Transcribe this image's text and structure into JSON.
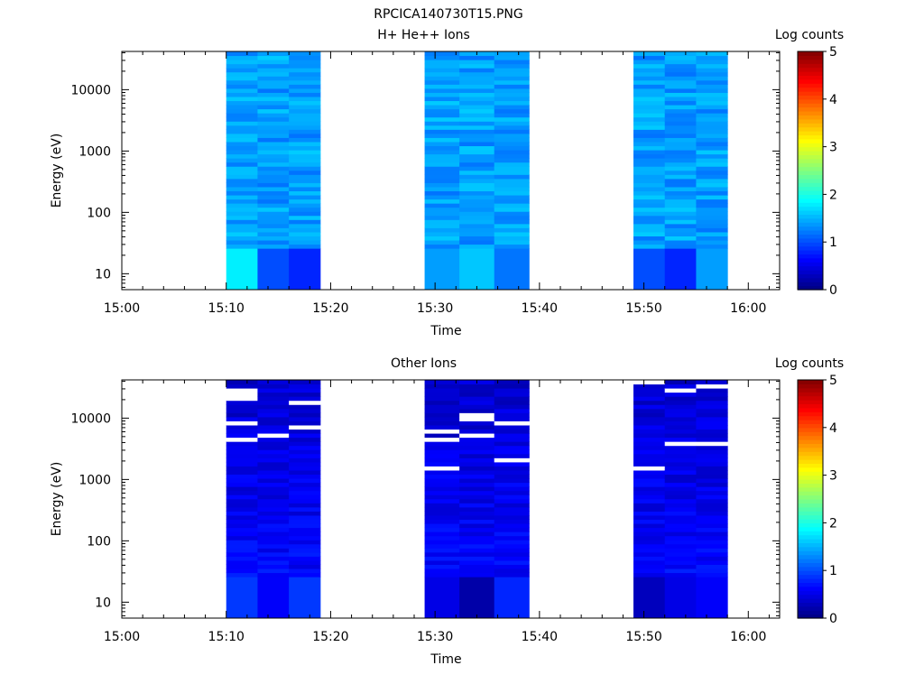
{
  "figure": {
    "title": "RPCICA140730T15.PNG"
  },
  "chart_data": [
    {
      "type": "heatmap",
      "title": "H+ He++ Ions",
      "xlabel": "Time",
      "ylabel": "Energy (eV)",
      "y_scale": "log",
      "xlim": [
        "15:00",
        "16:03"
      ],
      "ylim": [
        5.5,
        42000
      ],
      "x_ticks": [
        "15:00",
        "15:10",
        "15:20",
        "15:30",
        "15:40",
        "15:50",
        "16:00"
      ],
      "y_ticks": [
        "10",
        "100",
        "1000",
        "10000"
      ],
      "y_tick_values": [
        10,
        100,
        1000,
        10000
      ],
      "colorbar": {
        "label": "Log counts",
        "range": [
          0,
          5
        ],
        "ticks": [
          "0",
          "1",
          "2",
          "3",
          "4",
          "5"
        ]
      },
      "data_intervals": [
        {
          "start": "15:10",
          "end": "15:19"
        },
        {
          "start": "15:29",
          "end": "15:39"
        },
        {
          "start": "15:49",
          "end": "15:58"
        }
      ],
      "columns_per_interval": 3,
      "energy_bins_approx": 48,
      "value_range_approx": [
        0.8,
        1.9
      ],
      "low_energy_band_values": [
        [
          1.8,
          1.0,
          0.8
        ],
        [
          1.4,
          1.6,
          1.2
        ],
        [
          1.0,
          0.8,
          1.4
        ]
      ]
    },
    {
      "type": "heatmap",
      "title": "Other Ions",
      "xlabel": "Time",
      "ylabel": "Energy (eV)",
      "y_scale": "log",
      "xlim": [
        "15:00",
        "16:03"
      ],
      "ylim": [
        5.5,
        42000
      ],
      "x_ticks": [
        "15:00",
        "15:10",
        "15:20",
        "15:30",
        "15:40",
        "15:50",
        "16:00"
      ],
      "y_ticks": [
        "10",
        "100",
        "1000",
        "10000"
      ],
      "y_tick_values": [
        10,
        100,
        1000,
        10000
      ],
      "colorbar": {
        "label": "Log counts",
        "range": [
          0,
          5
        ],
        "ticks": [
          "0",
          "1",
          "2",
          "3",
          "4",
          "5"
        ]
      },
      "data_intervals": [
        {
          "start": "15:10",
          "end": "15:19"
        },
        {
          "start": "15:29",
          "end": "15:39"
        },
        {
          "start": "15:49",
          "end": "15:58"
        }
      ],
      "columns_per_interval": 3,
      "energy_bins_approx": 48,
      "value_range_approx": [
        0.2,
        1.0
      ],
      "low_energy_band_values": [
        [
          0.9,
          0.6,
          0.9
        ],
        [
          0.5,
          0.2,
          0.8
        ],
        [
          0.3,
          0.5,
          0.6
        ]
      ]
    }
  ]
}
